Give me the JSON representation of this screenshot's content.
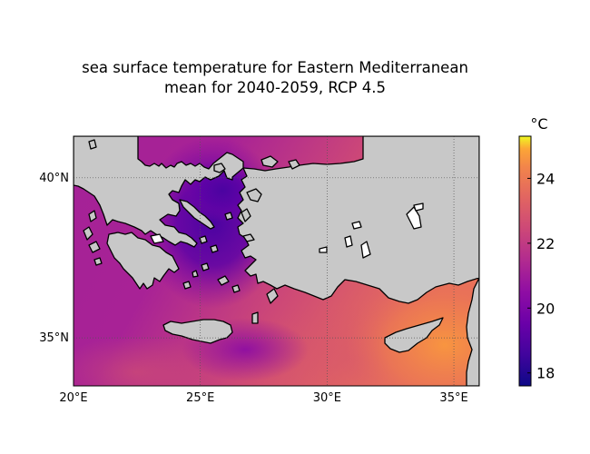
{
  "title_line1": "sea surface temperature for Eastern Mediterranean",
  "title_line2": "mean for 2040-2059, RCP 4.5",
  "map": {
    "lon_range": [
      20,
      36
    ],
    "lat_range": [
      33.5,
      41.3
    ],
    "lon_ticks": [
      {
        "value": 20,
        "label": "20°E"
      },
      {
        "value": 25,
        "label": "25°E"
      },
      {
        "value": 30,
        "label": "30°E"
      },
      {
        "value": 35,
        "label": "35°E"
      }
    ],
    "lat_ticks": [
      {
        "value": 35,
        "label": "35°N"
      },
      {
        "value": 40,
        "label": "40°N"
      }
    ],
    "grid": true,
    "land_color": "#c8c8c8",
    "coastline_color": "#000000"
  },
  "colorbar": {
    "unit_label": "°C",
    "range": [
      17.6,
      25.3
    ],
    "colormap": "plasma",
    "ticks": [
      {
        "value": 18,
        "label": "18"
      },
      {
        "value": 20,
        "label": "20"
      },
      {
        "value": 22,
        "label": "22"
      },
      {
        "value": 24,
        "label": "24"
      }
    ]
  }
}
